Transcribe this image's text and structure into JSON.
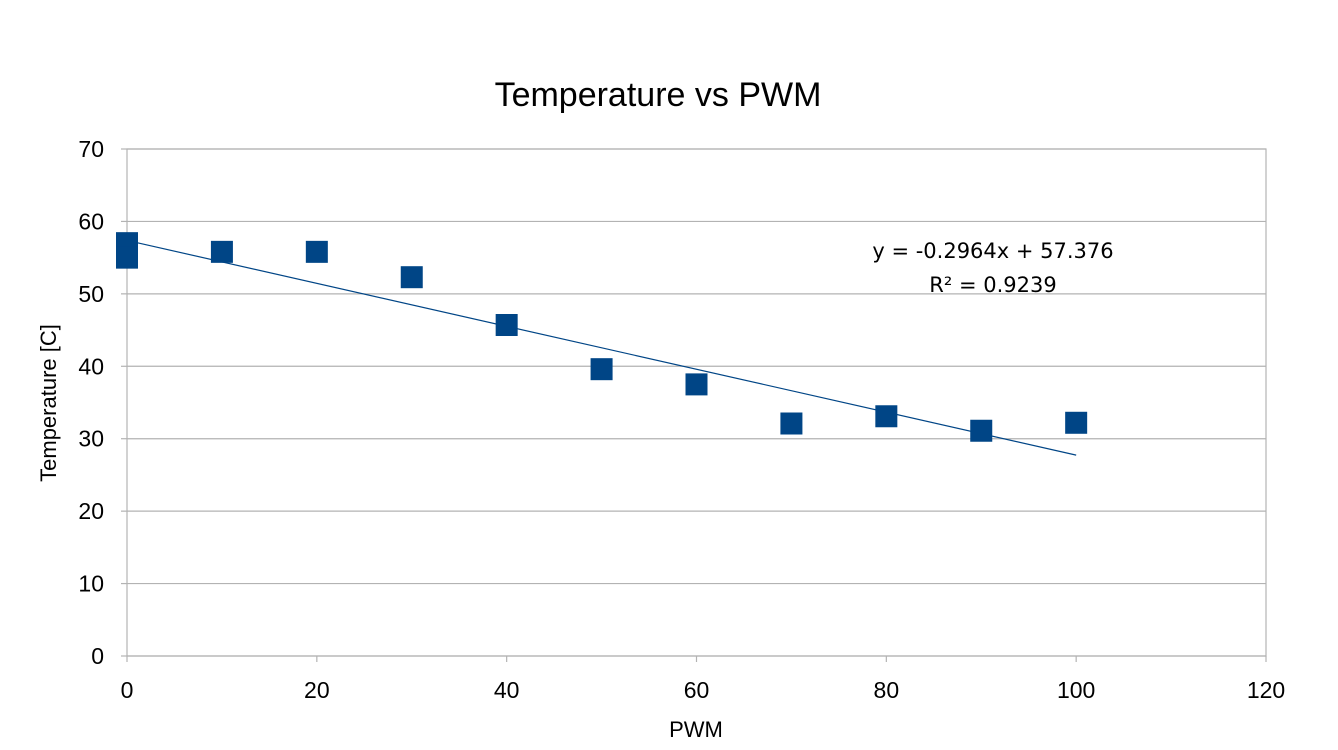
{
  "chart_data": {
    "type": "scatter",
    "title": "Temperature vs PWM",
    "xlabel": "PWM",
    "ylabel": "Temperature [C]",
    "xlim": [
      0,
      120
    ],
    "ylim": [
      0,
      70
    ],
    "xticks": [
      0,
      20,
      40,
      60,
      80,
      100,
      120
    ],
    "yticks": [
      0,
      10,
      20,
      30,
      40,
      50,
      60,
      70
    ],
    "grid": "horizontal",
    "legend": "none",
    "marker": "square",
    "series_color": "#004586",
    "trendline_color": "#004586",
    "points": [
      {
        "x": 0,
        "y": 57
      },
      {
        "x": 0,
        "y": 55
      },
      {
        "x": 10,
        "y": 55.8
      },
      {
        "x": 20,
        "y": 55.8
      },
      {
        "x": 30,
        "y": 52.3
      },
      {
        "x": 40,
        "y": 45.7
      },
      {
        "x": 50,
        "y": 39.6
      },
      {
        "x": 60,
        "y": 37.5
      },
      {
        "x": 70,
        "y": 32.1
      },
      {
        "x": 80,
        "y": 33.1
      },
      {
        "x": 90,
        "y": 31.1
      },
      {
        "x": 100,
        "y": 32.2
      }
    ],
    "trendline": {
      "type": "linear",
      "slope": -0.2964,
      "intercept": 57.376,
      "x_range": [
        0,
        100
      ],
      "equation": "y = -0.2964x + 57.376",
      "r_squared": "R² = 0.9239"
    }
  }
}
